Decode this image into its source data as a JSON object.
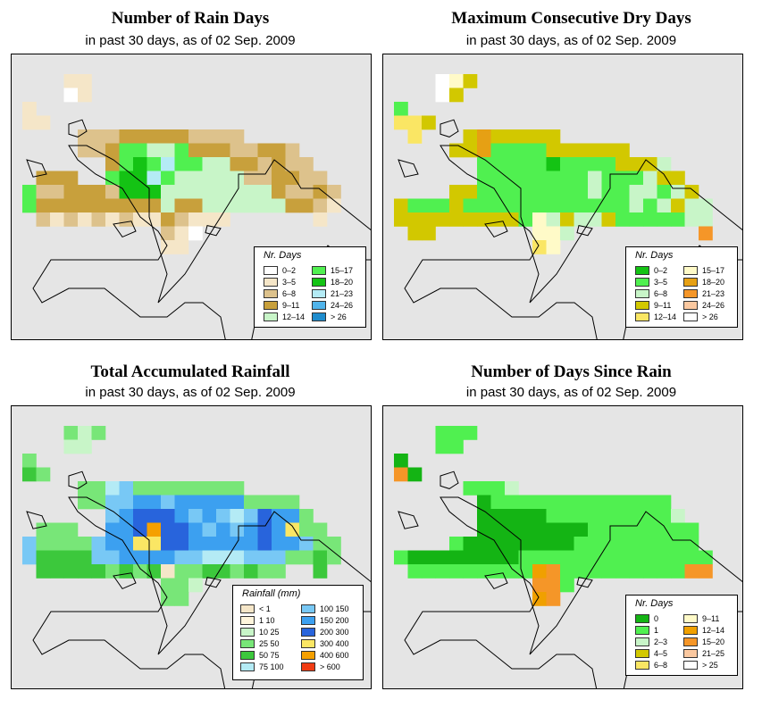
{
  "subtitle": "in past 30 days, as of  02 Sep. 2009",
  "panels": [
    {
      "title": "Number of Rain Days",
      "legend_title": "Nr. Days",
      "legend": [
        {
          "label": "0–2",
          "color": "#ffffff"
        },
        {
          "label": "3–5",
          "color": "#f5e6c8"
        },
        {
          "label": "6–8",
          "color": "#ddc28c"
        },
        {
          "label": "9–11",
          "color": "#c8a03c"
        },
        {
          "label": "12–14",
          "color": "#c8f5c8"
        },
        {
          "label": "15–17",
          "color": "#50f050"
        },
        {
          "label": "18–20",
          "color": "#14c314"
        },
        {
          "label": "21–23",
          "color": "#b4ebf5"
        },
        {
          "label": "24–26",
          "color": "#50b4eb"
        },
        {
          "label": "> 26",
          "color": "#1e8ccd"
        }
      ]
    },
    {
      "title": "Maximum Consecutive Dry Days",
      "legend_title": "Nr. Days",
      "legend": [
        {
          "label": "0–2",
          "color": "#14c314"
        },
        {
          "label": "3–5",
          "color": "#50f050"
        },
        {
          "label": "6–8",
          "color": "#c8f5c8"
        },
        {
          "label": "9–11",
          "color": "#d2c800"
        },
        {
          "label": "12–14",
          "color": "#fae664"
        },
        {
          "label": "15–17",
          "color": "#fffac8"
        },
        {
          "label": "18–20",
          "color": "#e6a014"
        },
        {
          "label": "21–23",
          "color": "#f59628"
        },
        {
          "label": "24–26",
          "color": "#fac8a0"
        },
        {
          "label": "> 26",
          "color": "#ffffff"
        }
      ]
    },
    {
      "title": "Total Accumulated Rainfall",
      "legend_title": "Rainfall (mm)",
      "legend": [
        {
          "label": "< 1",
          "color": "#f5e6c8"
        },
        {
          "label": "1    10",
          "color": "#fff5dc"
        },
        {
          "label": "10    25",
          "color": "#c8f5c8"
        },
        {
          "label": "25    50",
          "color": "#78e678"
        },
        {
          "label": "50    75",
          "color": "#3cc83c"
        },
        {
          "label": "75   100",
          "color": "#b4ebf5"
        },
        {
          "label": "100   150",
          "color": "#78c8f5"
        },
        {
          "label": "150   200",
          "color": "#3ca0f0"
        },
        {
          "label": "200   300",
          "color": "#2864dc"
        },
        {
          "label": "300   400",
          "color": "#fae664"
        },
        {
          "label": "400   600",
          "color": "#f5a000"
        },
        {
          "label": "> 600",
          "color": "#f03c14"
        }
      ]
    },
    {
      "title": "Number of Days Since Rain",
      "legend_title": "Nr. Days",
      "legend": [
        {
          "label": "0",
          "color": "#14b414"
        },
        {
          "label": "1",
          "color": "#50f050"
        },
        {
          "label": "2–3",
          "color": "#c8f5c8"
        },
        {
          "label": "4–5",
          "color": "#d2c800"
        },
        {
          "label": "6–8",
          "color": "#fae664"
        },
        {
          "label": "9–11",
          "color": "#fffac8"
        },
        {
          "label": "12–14",
          "color": "#f0a000"
        },
        {
          "label": "15–20",
          "color": "#f59628"
        },
        {
          "label": "21–25",
          "color": "#fac8a0"
        },
        {
          "label": "> 25",
          "color": "#ffffff"
        }
      ]
    }
  ],
  "maps": [
    {
      "default": 2,
      "rows": [
        {
          "row": 0,
          "cells": {
            "3": 1,
            "4": 1
          }
        },
        {
          "row": 1,
          "cells": {
            "3": 0,
            "4": 1
          }
        },
        {
          "row": 2,
          "cells": {
            "0": 1
          }
        },
        {
          "row": 3,
          "cells": {
            "0": 1,
            "1": 1
          }
        },
        {
          "row": 4,
          "cells": {
            "4": 2,
            "5": 2,
            "6": 2,
            "7": 3,
            "8": 3,
            "9": 3,
            "10": 3,
            "11": 3,
            "12": 2,
            "13": 2,
            "14": 2,
            "15": 2
          }
        },
        {
          "row": 5,
          "cells": {
            "4": 2,
            "5": 2,
            "6": 3,
            "7": 5,
            "8": 5,
            "9": 4,
            "10": 4,
            "11": 5,
            "12": 3,
            "13": 3,
            "14": 3,
            "15": 2,
            "16": 2,
            "17": 3,
            "18": 3,
            "19": 2
          }
        },
        {
          "row": 6,
          "cells": {
            "6": 3,
            "7": 5,
            "8": 6,
            "9": 5,
            "10": 7,
            "11": 5,
            "12": 5,
            "13": 4,
            "14": 4,
            "15": 3,
            "16": 3,
            "17": 2,
            "18": 3,
            "19": 2,
            "20": 2
          }
        },
        {
          "row": 7,
          "cells": {
            "1": 3,
            "2": 3,
            "3": 3,
            "6": 5,
            "7": 6,
            "8": 6,
            "9": 7,
            "10": 5,
            "11": 4,
            "12": 4,
            "13": 4,
            "14": 4,
            "15": 4,
            "16": 2,
            "17": 2,
            "18": 3,
            "19": 3,
            "20": 2,
            "21": 2
          }
        },
        {
          "row": 8,
          "cells": {
            "0": 5,
            "1": 2,
            "2": 2,
            "3": 3,
            "4": 3,
            "5": 3,
            "6": 2,
            "7": 6,
            "8": 6,
            "9": 6,
            "10": 4,
            "11": 4,
            "12": 4,
            "13": 4,
            "14": 4,
            "15": 4,
            "16": 4,
            "17": 4,
            "18": 3,
            "19": 2,
            "20": 2,
            "21": 3,
            "22": 2
          }
        },
        {
          "row": 9,
          "cells": {
            "0": 5,
            "1": 3,
            "2": 3,
            "3": 3,
            "4": 3,
            "5": 3,
            "6": 3,
            "7": 3,
            "8": 3,
            "9": 3,
            "10": 4,
            "11": 3,
            "12": 3,
            "13": 4,
            "14": 4,
            "15": 4,
            "16": 4,
            "17": 4,
            "18": 4,
            "19": 3,
            "20": 3,
            "21": 2,
            "22": 1
          }
        },
        {
          "row": 10,
          "cells": {
            "1": 2,
            "2": 1,
            "3": 2,
            "4": 1,
            "5": 2,
            "6": 1,
            "7": 2,
            "8": 1,
            "9": 1,
            "10": 3,
            "11": 2,
            "12": 1,
            "13": 1,
            "14": 1,
            "21": 1
          }
        },
        {
          "row": 11,
          "cells": {
            "10": 2,
            "11": 1,
            "12": 0
          }
        },
        {
          "row": 12,
          "cells": {
            "10": 1,
            "11": 1
          }
        }
      ]
    },
    {
      "default": 2,
      "rows": [
        {
          "row": 0,
          "cells": {
            "3": 9,
            "4": 5,
            "5": 3
          }
        },
        {
          "row": 1,
          "cells": {
            "3": 9,
            "4": 3
          }
        },
        {
          "row": 2,
          "cells": {
            "0": 1
          }
        },
        {
          "row": 3,
          "cells": {
            "0": 4,
            "1": 4,
            "2": 3
          }
        },
        {
          "row": 4,
          "cells": {
            "1": 4,
            "5": 3,
            "6": 6,
            "7": 3,
            "8": 3,
            "9": 3,
            "10": 3,
            "11": 3
          }
        },
        {
          "row": 5,
          "cells": {
            "4": 3,
            "5": 3,
            "6": 6,
            "7": 1,
            "8": 1,
            "9": 1,
            "10": 1,
            "11": 3,
            "12": 3,
            "13": 3,
            "14": 3,
            "15": 3,
            "16": 3
          }
        },
        {
          "row": 6,
          "cells": {
            "6": 1,
            "7": 1,
            "8": 1,
            "9": 1,
            "10": 1,
            "11": 0,
            "12": 1,
            "13": 1,
            "14": 1,
            "15": 1,
            "16": 3,
            "17": 3,
            "18": 3,
            "19": 2
          }
        },
        {
          "row": 7,
          "cells": {
            "6": 1,
            "7": 1,
            "8": 1,
            "9": 1,
            "10": 1,
            "11": 1,
            "12": 1,
            "13": 1,
            "14": 2,
            "15": 1,
            "16": 1,
            "17": 1,
            "18": 2,
            "19": 3,
            "20": 3
          }
        },
        {
          "row": 8,
          "cells": {
            "4": 3,
            "5": 3,
            "6": 1,
            "7": 1,
            "8": 1,
            "9": 1,
            "10": 1,
            "11": 1,
            "12": 1,
            "13": 1,
            "14": 2,
            "15": 1,
            "16": 1,
            "17": 2,
            "18": 2,
            "19": 1,
            "20": 2,
            "21": 3
          }
        },
        {
          "row": 9,
          "cells": {
            "0": 3,
            "1": 1,
            "2": 1,
            "3": 1,
            "4": 3,
            "5": 1,
            "6": 1,
            "7": 1,
            "8": 1,
            "9": 1,
            "10": 1,
            "11": 1,
            "12": 1,
            "13": 1,
            "14": 1,
            "15": 1,
            "16": 1,
            "17": 2,
            "18": 1,
            "19": 2,
            "20": 3,
            "21": 2,
            "22": 2
          }
        },
        {
          "row": 10,
          "cells": {
            "0": 3,
            "1": 3,
            "2": 3,
            "3": 3,
            "4": 3,
            "5": 3,
            "6": 3,
            "7": 3,
            "8": 3,
            "9": 1,
            "10": 5,
            "11": 2,
            "12": 3,
            "13": 2,
            "14": 2,
            "15": 3,
            "16": 1,
            "17": 1,
            "18": 1,
            "19": 1,
            "20": 1,
            "21": 2,
            "22": 2
          }
        },
        {
          "row": 11,
          "cells": {
            "1": 3,
            "2": 3,
            "10": 5,
            "11": 5,
            "12": 2,
            "22": 7
          }
        },
        {
          "row": 12,
          "cells": {
            "10": 4,
            "11": 5
          }
        }
      ]
    },
    {
      "default": 5,
      "rows": [
        {
          "row": 0,
          "cells": {
            "3": 3,
            "4": 2,
            "5": 3
          }
        },
        {
          "row": 1,
          "cells": {
            "3": 2,
            "4": 2
          }
        },
        {
          "row": 2,
          "cells": {
            "0": 3
          }
        },
        {
          "row": 3,
          "cells": {
            "0": 4,
            "1": 3
          }
        },
        {
          "row": 4,
          "cells": {
            "4": 3,
            "5": 3,
            "6": 5,
            "7": 6,
            "8": 3,
            "9": 3,
            "10": 3,
            "11": 3,
            "12": 3,
            "13": 3,
            "14": 3,
            "15": 3
          }
        },
        {
          "row": 5,
          "cells": {
            "4": 3,
            "5": 3,
            "6": 6,
            "7": 6,
            "8": 7,
            "9": 7,
            "10": 6,
            "11": 7,
            "12": 7,
            "13": 7,
            "14": 7,
            "15": 7,
            "16": 3,
            "17": 3,
            "18": 3,
            "19": 3
          }
        },
        {
          "row": 6,
          "cells": {
            "6": 6,
            "7": 7,
            "8": 8,
            "9": 8,
            "10": 8,
            "11": 7,
            "12": 6,
            "13": 7,
            "14": 6,
            "15": 5,
            "16": 6,
            "17": 8,
            "18": 7,
            "19": 7,
            "20": 3
          }
        },
        {
          "row": 7,
          "cells": {
            "1": 3,
            "2": 3,
            "3": 3,
            "6": 7,
            "7": 7,
            "8": 8,
            "9": 10,
            "10": 8,
            "11": 8,
            "12": 7,
            "13": 6,
            "14": 7,
            "15": 6,
            "16": 7,
            "17": 8,
            "18": 7,
            "19": 9,
            "20": 3,
            "21": 3
          }
        },
        {
          "row": 8,
          "cells": {
            "0": 6,
            "1": 3,
            "2": 3,
            "3": 3,
            "4": 3,
            "5": 6,
            "6": 7,
            "7": 7,
            "8": 9,
            "9": 9,
            "10": 8,
            "11": 8,
            "12": 7,
            "13": 7,
            "14": 7,
            "15": 7,
            "16": 7,
            "17": 8,
            "18": 7,
            "19": 7,
            "20": 6,
            "21": 3,
            "22": 3
          }
        },
        {
          "row": 9,
          "cells": {
            "0": 6,
            "1": 4,
            "2": 4,
            "3": 4,
            "4": 4,
            "5": 6,
            "6": 6,
            "7": 7,
            "8": 7,
            "9": 7,
            "10": 7,
            "11": 6,
            "12": 6,
            "13": 5,
            "14": 5,
            "15": 5,
            "16": 6,
            "17": 6,
            "18": 6,
            "19": 3,
            "20": 3,
            "21": 4,
            "22": 3
          }
        },
        {
          "row": 10,
          "cells": {
            "1": 4,
            "2": 4,
            "3": 4,
            "4": 4,
            "5": 4,
            "6": 3,
            "7": 4,
            "8": 3,
            "9": 4,
            "10": 0,
            "11": 3,
            "12": 3,
            "13": 4,
            "14": 4,
            "15": 3,
            "16": 4,
            "17": 3,
            "18": 3,
            "21": 4
          }
        },
        {
          "row": 11,
          "cells": {
            "10": 3,
            "11": 3,
            "12": 2
          }
        },
        {
          "row": 12,
          "cells": {
            "10": 3,
            "11": 3
          }
        }
      ]
    },
    {
      "default": 1,
      "rows": [
        {
          "row": 0,
          "cells": {
            "3": 1,
            "4": 1,
            "5": 1
          }
        },
        {
          "row": 1,
          "cells": {
            "3": 1,
            "4": 1
          }
        },
        {
          "row": 2,
          "cells": {
            "0": 0
          }
        },
        {
          "row": 3,
          "cells": {
            "0": 7,
            "1": 0
          }
        },
        {
          "row": 4,
          "cells": {
            "5": 1,
            "6": 1,
            "7": 1,
            "8": 2
          }
        },
        {
          "row": 5,
          "cells": {
            "6": 0,
            "7": 1,
            "8": 1,
            "9": 1,
            "10": 1,
            "11": 1,
            "12": 1,
            "13": 1,
            "14": 1,
            "15": 1,
            "16": 1,
            "17": 1,
            "18": 1,
            "19": 1
          }
        },
        {
          "row": 6,
          "cells": {
            "6": 0,
            "7": 0,
            "8": 0,
            "9": 0,
            "10": 0,
            "11": 1,
            "12": 1,
            "13": 1,
            "14": 1,
            "15": 1,
            "16": 1,
            "17": 1,
            "18": 1,
            "19": 1,
            "20": 2
          }
        },
        {
          "row": 7,
          "cells": {
            "6": 0,
            "7": 0,
            "8": 0,
            "9": 0,
            "10": 0,
            "11": 0,
            "12": 0,
            "13": 0,
            "14": 1,
            "15": 1,
            "16": 1,
            "17": 1,
            "18": 1,
            "19": 1,
            "20": 1,
            "21": 1
          }
        },
        {
          "row": 8,
          "cells": {
            "4": 1,
            "5": 0,
            "6": 0,
            "7": 0,
            "8": 0,
            "9": 0,
            "10": 0,
            "11": 0,
            "12": 0,
            "13": 1,
            "14": 1,
            "15": 1,
            "16": 1,
            "17": 1,
            "18": 1,
            "19": 1,
            "20": 1,
            "21": 1
          }
        },
        {
          "row": 9,
          "cells": {
            "0": 1,
            "1": 0,
            "2": 0,
            "3": 0,
            "4": 0,
            "5": 0,
            "6": 0,
            "7": 0,
            "8": 0,
            "9": 1,
            "10": 1,
            "11": 1,
            "12": 1,
            "13": 1,
            "14": 1,
            "15": 1,
            "16": 1,
            "17": 1,
            "18": 1,
            "19": 1,
            "20": 1,
            "21": 1,
            "22": 1
          }
        },
        {
          "row": 10,
          "cells": {
            "1": 1,
            "2": 1,
            "3": 1,
            "4": 1,
            "5": 1,
            "6": 1,
            "7": 1,
            "8": 1,
            "9": 1,
            "10": 6,
            "11": 7,
            "12": 1,
            "13": 1,
            "14": 1,
            "15": 1,
            "16": 1,
            "17": 1,
            "18": 1,
            "19": 1,
            "20": 1,
            "21": 7,
            "22": 7
          }
        },
        {
          "row": 11,
          "cells": {
            "10": 7,
            "11": 7,
            "12": 1
          }
        },
        {
          "row": 12,
          "cells": {
            "10": 6,
            "11": 7
          }
        }
      ]
    }
  ],
  "colors": {
    "map_background": "#e5e5e5",
    "outline": "#000000"
  }
}
